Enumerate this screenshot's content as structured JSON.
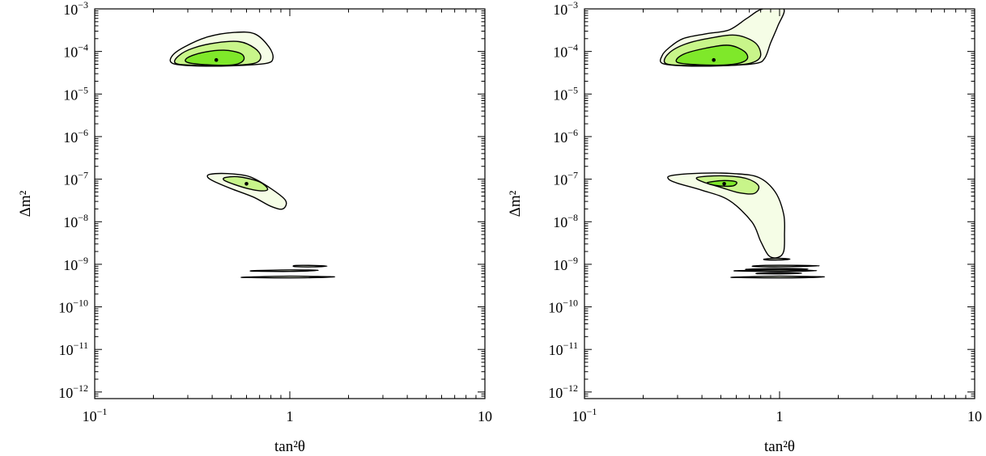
{
  "colors": {
    "region_99": "#f5fde6",
    "region_95": "#c8f58a",
    "region_90": "#7fe82a",
    "outline": "#000000",
    "best_fit_point": "#000000",
    "background": "#ffffff"
  },
  "chart_data": [
    {
      "type": "contour",
      "title": "",
      "xlabel": "tan²θ",
      "ylabel": "Δm²",
      "xscale": "log",
      "yscale": "log",
      "xlim": [
        0.1,
        10
      ],
      "ylim": [
        7e-13,
        0.001
      ],
      "grid": false,
      "x_ticks": [
        {
          "value": 0.1,
          "base": "10",
          "exp": "−1"
        },
        {
          "value": 1,
          "base": "1",
          "exp": ""
        },
        {
          "value": 10,
          "base": "10",
          "exp": ""
        }
      ],
      "y_ticks": [
        {
          "value": 0.001,
          "base": "10",
          "exp": "−3"
        },
        {
          "value": 0.0001,
          "base": "10",
          "exp": "−4"
        },
        {
          "value": 1e-05,
          "base": "10",
          "exp": "−5"
        },
        {
          "value": 1e-06,
          "base": "10",
          "exp": "−6"
        },
        {
          "value": 1e-07,
          "base": "10",
          "exp": "−7"
        },
        {
          "value": 1e-08,
          "base": "10",
          "exp": "−8"
        },
        {
          "value": 1e-09,
          "base": "10",
          "exp": "−9"
        },
        {
          "value": 1e-10,
          "base": "10",
          "exp": "−10"
        },
        {
          "value": 1e-11,
          "base": "10",
          "exp": "−11"
        },
        {
          "value": 1e-12,
          "base": "10",
          "exp": "−12"
        }
      ],
      "regions": [
        {
          "level": "outer",
          "color": "region_99",
          "points": [
            [
              0.25,
              5.3e-05
            ],
            [
              0.32,
              4.6e-05
            ],
            [
              0.5,
              4.6e-05
            ],
            [
              0.75,
              5.2e-05
            ],
            [
              0.82,
              7e-05
            ],
            [
              0.78,
              0.00013
            ],
            [
              0.66,
              0.00026
            ],
            [
              0.52,
              0.00028
            ],
            [
              0.38,
              0.00022
            ],
            [
              0.29,
              0.00013
            ],
            [
              0.25,
              8e-05
            ]
          ]
        },
        {
          "level": "middle",
          "color": "region_95",
          "points": [
            [
              0.26,
              5.3e-05
            ],
            [
              0.33,
              4.7e-05
            ],
            [
              0.5,
              4.7e-05
            ],
            [
              0.66,
              5.3e-05
            ],
            [
              0.71,
              7.5e-05
            ],
            [
              0.66,
              0.00012
            ],
            [
              0.55,
              0.00017
            ],
            [
              0.42,
              0.00016
            ],
            [
              0.32,
              0.00012
            ],
            [
              0.27,
              8e-05
            ]
          ]
        },
        {
          "level": "inner",
          "color": "region_90",
          "points": [
            [
              0.3,
              5.5e-05
            ],
            [
              0.4,
              4.8e-05
            ],
            [
              0.52,
              4.9e-05
            ],
            [
              0.58,
              6.3e-05
            ],
            [
              0.56,
              9e-05
            ],
            [
              0.46,
              0.000107
            ],
            [
              0.36,
              9.5e-05
            ],
            [
              0.3,
              7.2e-05
            ]
          ]
        },
        {
          "level": "outer",
          "color": "region_99",
          "points": [
            [
              0.39,
              1.3e-07
            ],
            [
              0.48,
              1.35e-07
            ],
            [
              0.62,
              1.15e-07
            ],
            [
              0.78,
              6.5e-08
            ],
            [
              0.95,
              3.2e-08
            ],
            [
              0.92,
              2e-08
            ],
            [
              0.8,
              2.3e-08
            ],
            [
              0.65,
              3.8e-08
            ],
            [
              0.5,
              6e-08
            ],
            [
              0.41,
              8.8e-08
            ],
            [
              0.38,
              1.1e-07
            ]
          ]
        },
        {
          "level": "middle",
          "color": "region_95",
          "points": [
            [
              0.47,
              1.1e-07
            ],
            [
              0.56,
              1.12e-07
            ],
            [
              0.7,
              8.6e-08
            ],
            [
              0.77,
              5.9e-08
            ],
            [
              0.72,
              5.3e-08
            ],
            [
              0.61,
              6e-08
            ],
            [
              0.52,
              7.5e-08
            ],
            [
              0.46,
              9.5e-08
            ]
          ]
        },
        {
          "level": "outer",
          "color": "region_99",
          "points": [
            [
              1.08,
              9.4e-10
            ],
            [
              1.3,
              9.4e-10
            ],
            [
              1.55,
              9.1e-10
            ],
            [
              1.3,
              8.7e-10
            ],
            [
              1.08,
              8.8e-10
            ],
            [
              1.04,
              9.1e-10
            ]
          ]
        },
        {
          "level": "outer",
          "color": "region_99",
          "points": [
            [
              0.66,
              7.1e-10
            ],
            [
              1.0,
              7.4e-10
            ],
            [
              1.4,
              7.2e-10
            ],
            [
              1.0,
              6.8e-10
            ],
            [
              0.66,
              6.9e-10
            ]
          ]
        },
        {
          "level": "outer",
          "color": "region_99",
          "points": [
            [
              0.6,
              5e-10
            ],
            [
              1.0,
              5.25e-10
            ],
            [
              1.7,
              5.05e-10
            ],
            [
              1.0,
              4.8e-10
            ],
            [
              0.6,
              4.9e-10
            ]
          ]
        }
      ],
      "best_fit_points": [
        [
          0.42,
          6.3e-05
        ],
        [
          0.6,
          7.8e-08
        ]
      ]
    },
    {
      "type": "contour",
      "title": "",
      "xlabel": "tan²θ",
      "ylabel": "Δm²",
      "xscale": "log",
      "yscale": "log",
      "xlim": [
        0.1,
        10
      ],
      "ylim": [
        7e-13,
        0.001
      ],
      "grid": false,
      "x_ticks": [
        {
          "value": 0.1,
          "base": "10",
          "exp": "−1"
        },
        {
          "value": 1,
          "base": "1",
          "exp": ""
        },
        {
          "value": 10,
          "base": "10",
          "exp": ""
        }
      ],
      "y_ticks": [
        {
          "value": 0.001,
          "base": "10",
          "exp": "−3"
        },
        {
          "value": 0.0001,
          "base": "10",
          "exp": "−4"
        },
        {
          "value": 1e-05,
          "base": "10",
          "exp": "−5"
        },
        {
          "value": 1e-06,
          "base": "10",
          "exp": "−6"
        },
        {
          "value": 1e-07,
          "base": "10",
          "exp": "−7"
        },
        {
          "value": 1e-08,
          "base": "10",
          "exp": "−8"
        },
        {
          "value": 1e-09,
          "base": "10",
          "exp": "−9"
        },
        {
          "value": 1e-10,
          "base": "10",
          "exp": "−10"
        },
        {
          "value": 1e-11,
          "base": "10",
          "exp": "−11"
        },
        {
          "value": 1e-12,
          "base": "10",
          "exp": "−12"
        }
      ],
      "regions": [
        {
          "level": "outer",
          "color": "region_99",
          "points": [
            [
              0.25,
              5.3e-05
            ],
            [
              0.32,
              4.6e-05
            ],
            [
              0.5,
              4.6e-05
            ],
            [
              0.75,
              5.2e-05
            ],
            [
              0.84,
              7e-05
            ],
            [
              0.9,
              0.00016
            ],
            [
              0.98,
              0.0004
            ],
            [
              1.05,
              0.001
            ],
            [
              0.82,
              0.001
            ],
            [
              0.68,
              0.0006
            ],
            [
              0.55,
              0.00032
            ],
            [
              0.42,
              0.00026
            ],
            [
              0.32,
              0.0002
            ],
            [
              0.27,
              0.00012
            ],
            [
              0.25,
              8e-05
            ]
          ]
        },
        {
          "level": "middle",
          "color": "region_95",
          "points": [
            [
              0.26,
              5.3e-05
            ],
            [
              0.33,
              4.7e-05
            ],
            [
              0.55,
              4.7e-05
            ],
            [
              0.72,
              5.4e-05
            ],
            [
              0.8,
              8e-05
            ],
            [
              0.75,
              0.00016
            ],
            [
              0.6,
              0.00024
            ],
            [
              0.45,
              0.00021
            ],
            [
              0.33,
              0.00015
            ],
            [
              0.27,
              9e-05
            ]
          ]
        },
        {
          "level": "inner",
          "color": "region_90",
          "points": [
            [
              0.3,
              5.5e-05
            ],
            [
              0.42,
              4.8e-05
            ],
            [
              0.58,
              5e-05
            ],
            [
              0.68,
              6.5e-05
            ],
            [
              0.66,
              0.0001
            ],
            [
              0.55,
              0.00014
            ],
            [
              0.42,
              0.00012
            ],
            [
              0.32,
              8.5e-05
            ]
          ]
        },
        {
          "level": "outer",
          "color": "region_99",
          "points": [
            [
              0.28,
              1.22e-07
            ],
            [
              0.4,
              1.38e-07
            ],
            [
              0.58,
              1.35e-07
            ],
            [
              0.78,
              1.1e-07
            ],
            [
              0.95,
              5e-08
            ],
            [
              1.05,
              1.5e-08
            ],
            [
              1.06,
              5e-09
            ],
            [
              1.05,
              2e-09
            ],
            [
              0.98,
              1.45e-09
            ],
            [
              0.88,
              1.6e-09
            ],
            [
              0.8,
              3.5e-09
            ],
            [
              0.72,
              1e-08
            ],
            [
              0.55,
              3.2e-08
            ],
            [
              0.4,
              5.5e-08
            ],
            [
              0.3,
              8e-08
            ],
            [
              0.27,
              1e-07
            ]
          ]
        },
        {
          "level": "middle",
          "color": "region_95",
          "points": [
            [
              0.38,
              1.1e-07
            ],
            [
              0.5,
              1.2e-07
            ],
            [
              0.67,
              1.05e-07
            ],
            [
              0.78,
              7e-08
            ],
            [
              0.74,
              4.6e-08
            ],
            [
              0.62,
              4.8e-08
            ],
            [
              0.5,
              6.4e-08
            ],
            [
              0.4,
              8.8e-08
            ]
          ]
        },
        {
          "level": "inner",
          "color": "region_90",
          "points": [
            [
              0.43,
              8.4e-08
            ],
            [
              0.52,
              9.3e-08
            ],
            [
              0.6,
              8.6e-08
            ],
            [
              0.58,
              7e-08
            ],
            [
              0.5,
              6.9e-08
            ],
            [
              0.44,
              7.6e-08
            ]
          ]
        },
        {
          "level": "outer",
          "color": "region_99",
          "points": [
            [
              0.84,
              1.33e-09
            ],
            [
              0.98,
              1.38e-09
            ],
            [
              1.13,
              1.32e-09
            ],
            [
              0.98,
              1.26e-09
            ],
            [
              0.85,
              1.27e-09
            ]
          ]
        },
        {
          "level": "outer",
          "color": "region_99",
          "points": [
            [
              0.75,
              9.2e-10
            ],
            [
              1.0,
              9.5e-10
            ],
            [
              1.6,
              9.2e-10
            ],
            [
              1.0,
              8.75e-10
            ],
            [
              0.75,
              8.85e-10
            ]
          ]
        },
        {
          "level": "outer",
          "color": "region_99",
          "points": [
            [
              0.7,
              7.7e-10
            ],
            [
              1.0,
              7.95e-10
            ],
            [
              1.4,
              7.7e-10
            ],
            [
              1.0,
              7.45e-10
            ],
            [
              0.7,
              7.5e-10
            ]
          ]
        },
        {
          "level": "outer",
          "color": "region_99",
          "points": [
            [
              0.62,
              7.1e-10
            ],
            [
              1.0,
              7.35e-10
            ],
            [
              1.55,
              7.1e-10
            ],
            [
              1.0,
              6.8e-10
            ],
            [
              0.62,
              6.95e-10
            ]
          ]
        },
        {
          "level": "outer",
          "color": "region_99",
          "points": [
            [
              0.78,
              6.15e-10
            ],
            [
              1.0,
              6.35e-10
            ],
            [
              1.3,
              6.15e-10
            ],
            [
              1.0,
              5.95e-10
            ],
            [
              0.78,
              6e-10
            ]
          ]
        },
        {
          "level": "outer",
          "color": "region_99",
          "points": [
            [
              0.6,
              5e-10
            ],
            [
              1.0,
              5.25e-10
            ],
            [
              1.7,
              5.05e-10
            ],
            [
              1.0,
              4.8e-10
            ],
            [
              0.6,
              4.9e-10
            ]
          ]
        }
      ],
      "best_fit_points": [
        [
          0.46,
          6.3e-05
        ],
        [
          0.52,
          7.8e-08
        ]
      ]
    }
  ]
}
